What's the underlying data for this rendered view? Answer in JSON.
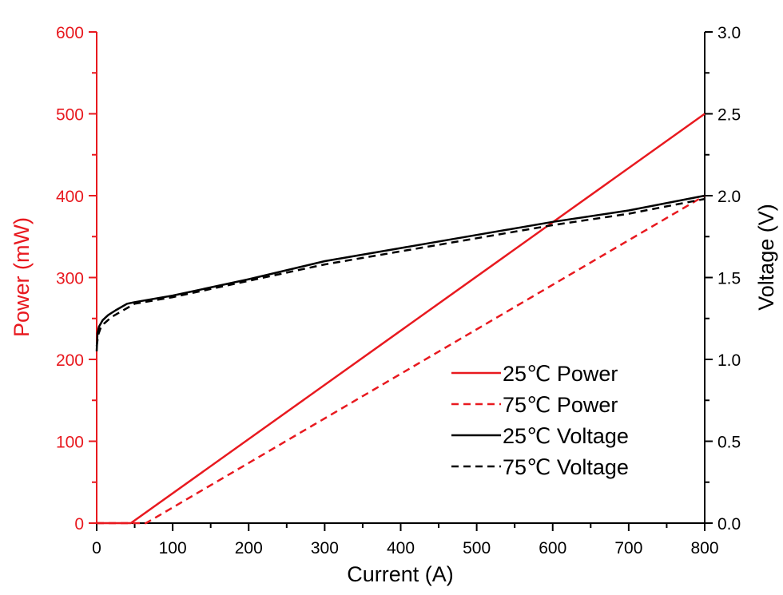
{
  "colors": {
    "left_axis": "#e8191f",
    "right_axis": "#000000",
    "power": "#e8191f",
    "voltage": "#000000"
  },
  "chart_data": {
    "type": "line",
    "title": "",
    "xlabel": "Current (A)",
    "ylabel_left": "Power (mW)",
    "ylabel_right": "Voltage (V)",
    "xlim": [
      0,
      800
    ],
    "ylim_left": [
      0,
      600
    ],
    "ylim_right": [
      0.0,
      3.0
    ],
    "x_ticks": [
      "0",
      "100",
      "200",
      "300",
      "400",
      "500",
      "600",
      "700",
      "800"
    ],
    "y_ticks_left": [
      "0",
      "100",
      "200",
      "300",
      "400",
      "500",
      "600"
    ],
    "y_ticks_right": [
      "0.0",
      "0.5",
      "1.0",
      "1.5",
      "2.0",
      "2.5",
      "3.0"
    ],
    "grid": false,
    "legend_position": "bottom-right",
    "series": [
      {
        "name": "25℃ Power",
        "axis": "left",
        "color": "#e8191f",
        "dash": "solid",
        "points": [
          [
            0,
            0
          ],
          [
            45,
            0
          ],
          [
            800,
            500
          ]
        ]
      },
      {
        "name": "75℃ Power",
        "axis": "left",
        "color": "#e8191f",
        "dash": "dashed",
        "points": [
          [
            0,
            0
          ],
          [
            65,
            0
          ],
          [
            800,
            400
          ]
        ]
      },
      {
        "name": "25℃ Voltage",
        "axis": "right",
        "color": "#000000",
        "dash": "solid",
        "points": [
          [
            0,
            1.05
          ],
          [
            1,
            1.16
          ],
          [
            3,
            1.2
          ],
          [
            8,
            1.24
          ],
          [
            15,
            1.27
          ],
          [
            25,
            1.3
          ],
          [
            40,
            1.34
          ],
          [
            50,
            1.35
          ],
          [
            100,
            1.39
          ],
          [
            200,
            1.49
          ],
          [
            300,
            1.6
          ],
          [
            400,
            1.68
          ],
          [
            500,
            1.76
          ],
          [
            600,
            1.84
          ],
          [
            700,
            1.91
          ],
          [
            800,
            2.0
          ]
        ]
      },
      {
        "name": "75℃ Voltage",
        "axis": "right",
        "color": "#000000",
        "dash": "dashed",
        "points": [
          [
            0,
            1.08
          ],
          [
            2,
            1.15
          ],
          [
            5,
            1.19
          ],
          [
            10,
            1.22
          ],
          [
            20,
            1.26
          ],
          [
            35,
            1.3
          ],
          [
            50,
            1.34
          ],
          [
            100,
            1.38
          ],
          [
            200,
            1.48
          ],
          [
            300,
            1.58
          ],
          [
            400,
            1.66
          ],
          [
            500,
            1.74
          ],
          [
            600,
            1.82
          ],
          [
            700,
            1.89
          ],
          [
            800,
            1.98
          ]
        ]
      }
    ]
  }
}
